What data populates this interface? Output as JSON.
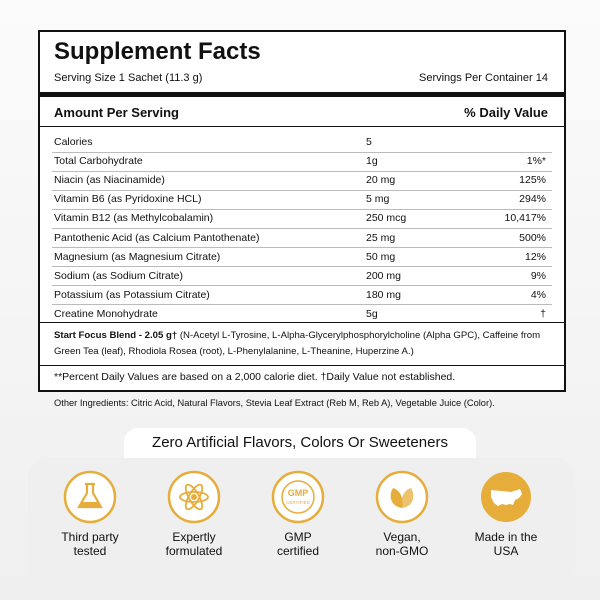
{
  "header": {
    "title": "Supplement Facts",
    "serving_size": "Serving Size 1 Sachet (11.3 g)",
    "servings_per_container": "Servings Per Container 14"
  },
  "table": {
    "headers": [
      "Amount Per Serving",
      "% Daily Value"
    ],
    "rows": [
      [
        "Calories",
        "5",
        ""
      ],
      [
        "Total Carbohydrate",
        "1g",
        "1%*"
      ],
      [
        "Niacin (as Niacinamide)",
        "20 mg",
        "125%"
      ],
      [
        "Vitamin B6 (as Pyridoxine HCL)",
        "5 mg",
        "294%"
      ],
      [
        "Vitamin B12 (as Methylcobalamin)",
        "250 mcg",
        "10,417%"
      ],
      [
        "Pantothenic Acid (as Calcium Pantothenate)",
        "25 mg",
        "500%"
      ],
      [
        "Magnesium (as Magnesium Citrate)",
        "50 mg",
        "12%"
      ],
      [
        "Sodium (as Sodium Citrate)",
        "200 mg",
        "9%"
      ],
      [
        "Potassium (as Potassium Citrate)",
        "180 mg",
        "4%"
      ],
      [
        "Creatine Monohydrate",
        "5g",
        "†"
      ]
    ]
  },
  "blend": {
    "name": "Start Focus Blend - 2.05 g†",
    "ingredients": "(N-Acetyl L-Tyrosine, L-Alpha-Glycerylphosphorylcholine (Alpha GPC), Caffeine from Green Tea (leaf), Rhodiola Rosea (root), L-Phenylalanine, L-Theanine, Huperzine A.)"
  },
  "footnote": "**Percent Daily Values are based on a 2,000 calorie diet. †Daily Value not established.",
  "other_ingredients": "Other Ingredients: Citric Acid, Natural Flavors, Stevia Leaf Extract (Reb M, Reb A), Vegetable Juice (Color).",
  "banner": "Zero Artificial Flavors, Colors Or Sweeteners",
  "badges": [
    {
      "label": [
        "Third party",
        "tested"
      ]
    },
    {
      "label": [
        "Expertly",
        "formulated"
      ]
    },
    {
      "label": [
        "GMP",
        "certified"
      ],
      "icon_text": [
        "GMP",
        "CERTIFIED"
      ]
    },
    {
      "label": [
        "Vegan,",
        "non-GMO"
      ]
    },
    {
      "label": [
        "Made in the",
        "USA"
      ]
    }
  ]
}
